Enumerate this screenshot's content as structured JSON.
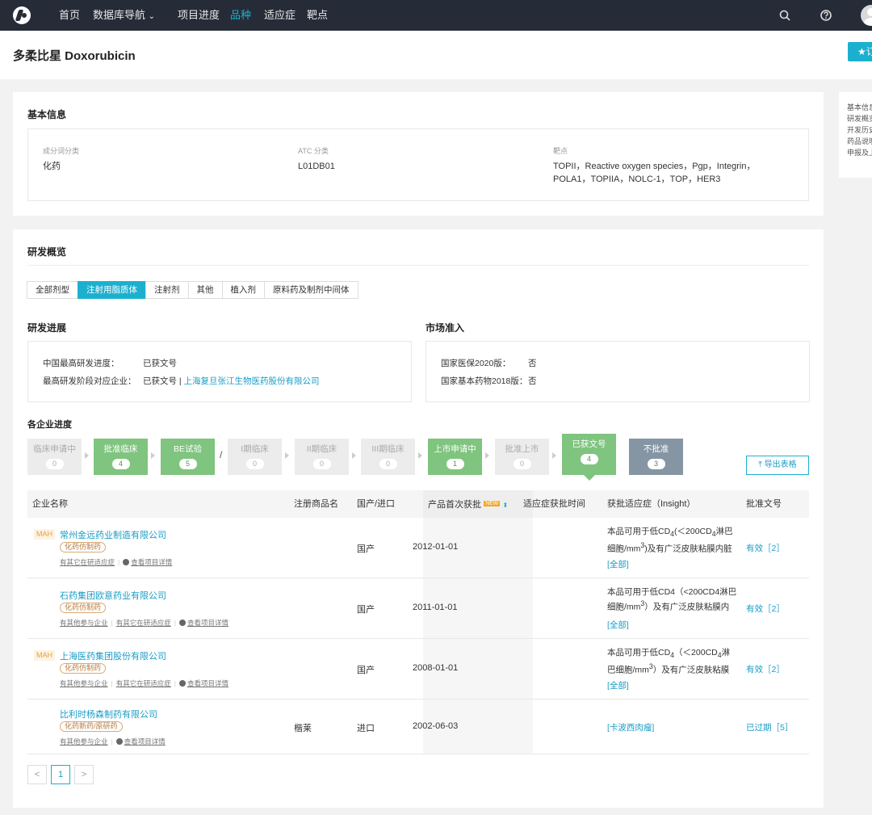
{
  "nav": {
    "items": [
      "首页",
      "数据库导航",
      "项目进度",
      "品种",
      "适应症",
      "靶点"
    ],
    "dropdown_arrow": "⌄",
    "search_icon": "search-icon",
    "help_icon": "help-icon"
  },
  "page": {
    "title": "多柔比星 Doxorubicin",
    "fav_label": "★订"
  },
  "anchors": [
    "基本信息",
    "研发概览",
    "开发历史",
    "药品说明",
    "申报及上"
  ],
  "basic": {
    "title": "基本信息",
    "fields": [
      {
        "label": "成分词分类",
        "value": "化药"
      },
      {
        "label": "ATC 分类",
        "value": "L01DB01"
      },
      {
        "label": "靶点",
        "value": "TOPII，Reactive oxygen species，Pgp，Integrin，POLA1，TOPIIA，NOLC-1，TOP，HER3"
      }
    ]
  },
  "overview": {
    "title": "研发概览",
    "tabs": [
      "全部剂型",
      "注射用脂质体",
      "注射剂",
      "其他",
      "植入剂",
      "原料药及制剂中间体"
    ],
    "active_tab": 1,
    "progress": {
      "title": "研发进展",
      "rows": [
        {
          "label": "中国最高研发进度：",
          "value": "已获文号",
          "extra": ""
        },
        {
          "label": "最高研发阶段对应企业：",
          "value": "已获文号 | ",
          "extra": "上海复旦张江生物医药股份有限公司"
        }
      ]
    },
    "market": {
      "title": "市场准入",
      "rows": [
        {
          "label": "国家医保2020版：",
          "value": "否"
        },
        {
          "label": "国家基本药物2018版：",
          "value": "否"
        }
      ]
    },
    "company_progress_title": "各企业进度",
    "steps": [
      {
        "name": "临床申请中",
        "count": "0",
        "style": "gray"
      },
      {
        "name": "批准临床",
        "count": "4",
        "style": "green"
      },
      {
        "name": "BE试验",
        "count": "5",
        "style": "green"
      },
      {
        "name": "I期临床",
        "count": "0",
        "style": "gray"
      },
      {
        "name": "II期临床",
        "count": "0",
        "style": "gray"
      },
      {
        "name": "III期临床",
        "count": "0",
        "style": "gray"
      },
      {
        "name": "上市申请中",
        "count": "1",
        "style": "green"
      },
      {
        "name": "批准上市",
        "count": "0",
        "style": "gray"
      },
      {
        "name": "已获文号",
        "count": "4",
        "style": "green"
      },
      {
        "name": "不批准",
        "count": "3",
        "style": "slate"
      }
    ],
    "slash": "/",
    "export_label": "导出表格",
    "table": {
      "headers": [
        "企业名称",
        "注册商品名",
        "国产/进口",
        "产品首次获批",
        "适应症获批时间",
        "获批适应症（Insight）",
        "批准文号"
      ],
      "new_badge": "NEW",
      "rows": [
        {
          "mah": "MAH",
          "company": "常州金远药业制造有限公司",
          "badge": "化药仿制药",
          "links": [
            "有其它在研适应症",
            "查看项目详情"
          ],
          "brand": "",
          "origin": "国产",
          "first_approval": "2012-01-01",
          "indication_time": "",
          "insight_html": "本品可用于低CD<sub>4</sub>(＜200CD<sub>4</sub>淋巴细胞/mm<sup>3</sup>)及有广泛皮肤粘膜内脏",
          "insight_all": "[全部]",
          "approval": "有效［2］"
        },
        {
          "mah": "",
          "company": "石药集团欧意药业有限公司",
          "badge": "化药仿制药",
          "links": [
            "有其他参与企业",
            "有其它在研适应症",
            "查看项目详情"
          ],
          "brand": "",
          "origin": "国产",
          "first_approval": "2011-01-01",
          "indication_time": "",
          "insight_html": "本品可用于低CD4（<200CD4淋巴细胞/mm<sup>3</sup>）及有广泛皮肤粘膜内",
          "insight_all": "[全部]",
          "approval": "有效［2］"
        },
        {
          "mah": "MAH",
          "company": "上海医药集团股份有限公司",
          "badge": "化药仿制药",
          "links": [
            "有其他参与企业",
            "有其它在研适应症",
            "查看项目详情"
          ],
          "brand": "",
          "origin": "国产",
          "first_approval": "2008-01-01",
          "indication_time": "",
          "insight_html": "本品可用于低CD<sub>4</sub>（＜200CD<sub>4</sub>淋巴细胞/mm<sup>3</sup>）及有广泛皮肤粘膜",
          "insight_all": "[全部]",
          "approval": "有效［2］"
        },
        {
          "mah": "",
          "company": "比利时杨森制药有限公司",
          "badge": "化药新药/原研药",
          "links": [
            "有其他参与企业",
            "查看项目详情"
          ],
          "brand": "楷莱",
          "origin": "进口",
          "first_approval": "2002-06-03",
          "indication_time": "",
          "insight_html": "",
          "insight_all": "[卡波西肉瘤]",
          "approval": "已过期［5］"
        }
      ]
    },
    "pager": {
      "prev": "<",
      "page": "1",
      "next": ">"
    }
  }
}
